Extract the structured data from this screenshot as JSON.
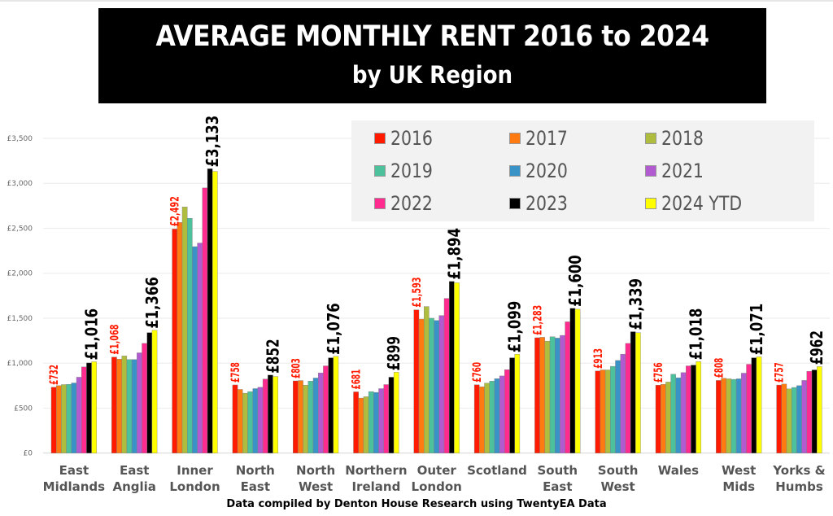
{
  "chart_data": {
    "type": "bar",
    "title": "AVERAGE MONTHLY RENT 2016 to 2024",
    "subtitle": "by UK Region",
    "xlabel": "",
    "ylabel": "",
    "ylim": [
      0,
      3500
    ],
    "yticks": [
      0,
      500,
      1000,
      1500,
      2000,
      2500,
      3000,
      3500
    ],
    "ytick_labels": [
      "£0",
      "£500",
      "£1,000",
      "£1,500",
      "£2,000",
      "£2,500",
      "£3,000",
      "£3,500"
    ],
    "grid": true,
    "legend_position": "top-right",
    "categories": [
      [
        "East",
        "Midlands"
      ],
      [
        "East",
        "Anglia"
      ],
      [
        "Inner",
        "London"
      ],
      [
        "North",
        "East"
      ],
      [
        "North",
        "West"
      ],
      [
        "Northern",
        "Ireland"
      ],
      [
        "Outer",
        "London"
      ],
      [
        "Scotland"
      ],
      [
        "South",
        "East"
      ],
      [
        "South",
        "West"
      ],
      [
        "Wales"
      ],
      [
        "West",
        "Mids"
      ],
      [
        "Yorks &",
        "Humbs"
      ]
    ],
    "series": [
      {
        "name": "2016",
        "color": "#ff1a00",
        "values": [
          732,
          1068,
          2492,
          758,
          803,
          681,
          1593,
          760,
          1283,
          913,
          756,
          808,
          757
        ]
      },
      {
        "name": "2017",
        "color": "#ff7a10",
        "values": [
          750,
          1045,
          2565,
          708,
          807,
          612,
          1490,
          738,
          1288,
          925,
          765,
          832,
          768
        ]
      },
      {
        "name": "2018",
        "color": "#afbd3f",
        "values": [
          762,
          1080,
          2738,
          666,
          755,
          627,
          1630,
          778,
          1245,
          925,
          790,
          826,
          714
        ]
      },
      {
        "name": "2019",
        "color": "#4cc19b",
        "values": [
          765,
          1040,
          2611,
          684,
          800,
          684,
          1500,
          800,
          1294,
          965,
          877,
          820,
          730
        ]
      },
      {
        "name": "2020",
        "color": "#3a93c6",
        "values": [
          780,
          1040,
          2296,
          717,
          835,
          675,
          1475,
          828,
          1279,
          1030,
          838,
          826,
          750
        ]
      },
      {
        "name": "2021",
        "color": "#b25ad0",
        "values": [
          844,
          1115,
          2336,
          732,
          892,
          717,
          1530,
          858,
          1309,
          1100,
          895,
          889,
          808
        ]
      },
      {
        "name": "2022",
        "color": "#ff2b8e",
        "values": [
          958,
          1220,
          2949,
          823,
          970,
          762,
          1720,
          928,
          1460,
          1220,
          970,
          988,
          910
        ]
      },
      {
        "name": "2023",
        "color": "#000000",
        "values": [
          1003,
          1340,
          3162,
          868,
          1060,
          844,
          1910,
          1060,
          1610,
          1350,
          979,
          1060,
          925
        ]
      },
      {
        "name": "2024 YTD",
        "color": "#ffff00",
        "values": [
          1016,
          1366,
          3133,
          852,
          1076,
          899,
          1894,
          1099,
          1600,
          1339,
          1018,
          1071,
          962
        ]
      }
    ],
    "data_labels": {
      "first": [
        "£732",
        "£1,068",
        "£2,492",
        "£758",
        "£803",
        "£681",
        "£1,593",
        "£760",
        "£1,283",
        "£913",
        "£756",
        "£808",
        "£757"
      ],
      "last": [
        "£1,016",
        "£1,366",
        "£3,133",
        "£852",
        "£1,076",
        "£899",
        "£1,894",
        "£1,099",
        "£1,600",
        "£1,339",
        "£1,018",
        "£1,071",
        "£962"
      ]
    },
    "source": "Data compiled by Denton House Research using TwentyEA Data"
  }
}
